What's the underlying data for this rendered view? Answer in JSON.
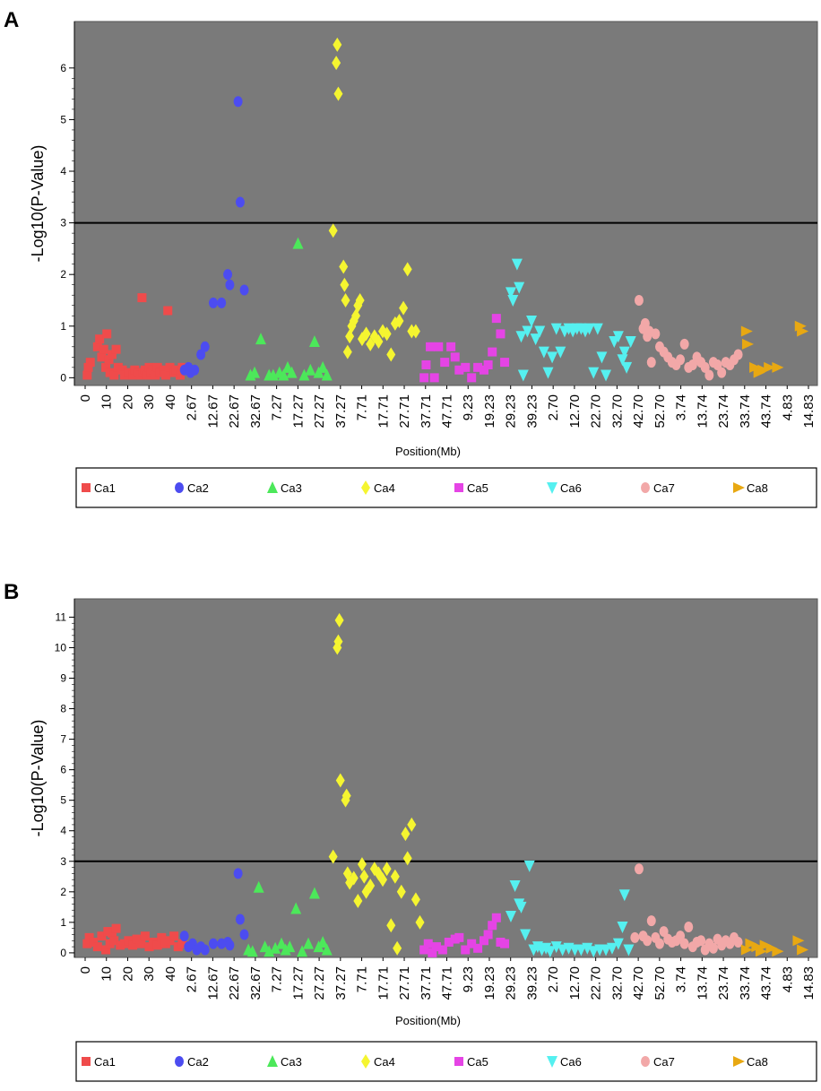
{
  "panels": [
    {
      "label": "A",
      "xlabel": "Position(Mb)",
      "ylabel": "-Log10(P-Value)",
      "ylim": [
        -0.15,
        6.9
      ],
      "yticks": [
        0,
        1,
        2,
        3,
        4,
        5,
        6
      ],
      "threshold": 3,
      "xticks": [
        "0",
        "10",
        "20",
        "30",
        "40",
        "2.67",
        "12.67",
        "22.67",
        "32.67",
        "7.27",
        "17.27",
        "27.27",
        "37.27",
        "7.71",
        "17.71",
        "27.71",
        "37.71",
        "47.71",
        "9.23",
        "19.23",
        "29.23",
        "39.23",
        "2.70",
        "12.70",
        "22.70",
        "32.70",
        "42.70",
        "52.70",
        "3.74",
        "13.74",
        "23.74",
        "33.74",
        "43.74",
        "4.83",
        "14.83"
      ],
      "legend": [
        "Ca1",
        "Ca2",
        "Ca3",
        "Ca4",
        "Ca5",
        "Ca6",
        "Ca7",
        "Ca8"
      ]
    },
    {
      "label": "B",
      "xlabel": "Position(Mb)",
      "ylabel": "-Log10(P-Value)",
      "ylim": [
        -0.15,
        11.6
      ],
      "yticks": [
        0,
        1,
        2,
        3,
        4,
        5,
        6,
        7,
        8,
        9,
        10,
        11
      ],
      "threshold": 3,
      "xticks": [
        "0",
        "10",
        "20",
        "30",
        "40",
        "2.67",
        "12.67",
        "22.67",
        "32.67",
        "7.27",
        "17.27",
        "27.27",
        "37.27",
        "7.71",
        "17.71",
        "27.71",
        "37.71",
        "47.71",
        "9.23",
        "19.23",
        "29.23",
        "39.23",
        "2.70",
        "12.70",
        "22.70",
        "32.70",
        "42.70",
        "52.70",
        "3.74",
        "13.74",
        "23.74",
        "33.74",
        "43.74",
        "4.83",
        "14.83"
      ],
      "legend": [
        "Ca1",
        "Ca2",
        "Ca3",
        "Ca4",
        "Ca5",
        "Ca6",
        "Ca7",
        "Ca8"
      ]
    }
  ],
  "colors": {
    "Ca1": "#ef4b4b",
    "Ca2": "#4c4cf0",
    "Ca3": "#4ce85a",
    "Ca4": "#f5f530",
    "Ca5": "#e544e5",
    "Ca6": "#55f0f0",
    "Ca7": "#f2a8a8",
    "Ca8": "#e8a812",
    "plot_bg": "#7a7a7a",
    "threshold": "#000000"
  },
  "chart_data": [
    {
      "type": "scatter",
      "title": "A",
      "xlabel": "Position(Mb)",
      "ylabel": "-Log10(P-Value)",
      "x_range": [
        0,
        35
      ],
      "ylim": [
        -0.15,
        6.9
      ],
      "threshold": 3,
      "series": [
        {
          "name": "Ca1",
          "shape": "square",
          "x": [
            0.1,
            0.15,
            0.25,
            0.6,
            0.7,
            0.8,
            0.9,
            1.0,
            1.05,
            1.15,
            1.2,
            1.3,
            1.4,
            1.5,
            1.6,
            1.8,
            1.9,
            2.1,
            2.3,
            2.4,
            2.6,
            2.7,
            2.75,
            2.8,
            2.9,
            3.0,
            3.1,
            3.2,
            3.3,
            3.4,
            3.5,
            3.6,
            3.8,
            3.9,
            4.0,
            4.1,
            4.3,
            4.4,
            4.6,
            4.7
          ],
          "y": [
            0.05,
            0.2,
            0.3,
            0.6,
            0.75,
            0.4,
            0.55,
            0.2,
            0.85,
            0.35,
            0.1,
            0.45,
            0.05,
            0.55,
            0.2,
            0.15,
            0.05,
            0.1,
            0.05,
            0.15,
            0.1,
            0.05,
            1.55,
            0.1,
            0.15,
            0.05,
            0.2,
            0.1,
            0.15,
            0.05,
            0.2,
            0.1,
            0.15,
            0.05,
            1.3,
            0.2,
            0.1,
            0.15,
            0.05,
            0.2
          ]
        },
        {
          "name": "Ca2",
          "shape": "circle",
          "x": [
            4.8,
            5.0,
            5.1,
            5.3,
            5.6,
            5.8,
            6.2,
            6.6,
            6.9,
            7.0,
            7.4,
            7.5,
            7.7
          ],
          "y": [
            0.15,
            0.2,
            0.1,
            0.15,
            0.45,
            0.6,
            1.45,
            1.45,
            2.0,
            1.8,
            5.35,
            3.4,
            1.7
          ]
        },
        {
          "name": "Ca3",
          "shape": "tri-up",
          "x": [
            8.0,
            8.2,
            8.5,
            8.9,
            9.1,
            9.4,
            9.6,
            9.8,
            10.0,
            10.3,
            10.6,
            10.9,
            11.1,
            11.3,
            11.5,
            11.7
          ],
          "y": [
            0.05,
            0.1,
            0.75,
            0.05,
            0.05,
            0.1,
            0.05,
            0.2,
            0.1,
            2.6,
            0.05,
            0.15,
            0.7,
            0.1,
            0.2,
            0.05
          ]
        },
        {
          "name": "Ca4",
          "shape": "diamond",
          "x": [
            12.0,
            12.15,
            12.2,
            12.25,
            12.5,
            12.55,
            12.6,
            12.7,
            12.8,
            12.9,
            13.0,
            13.1,
            13.2,
            13.3,
            13.4,
            13.6,
            13.8,
            14.0,
            14.2,
            14.4,
            14.6,
            14.8,
            15.0,
            15.2,
            15.4,
            15.6,
            15.8,
            16.0
          ],
          "y": [
            2.85,
            6.1,
            6.45,
            5.5,
            2.15,
            1.8,
            1.5,
            0.5,
            0.8,
            1.0,
            1.1,
            1.2,
            1.4,
            1.5,
            0.75,
            0.85,
            0.65,
            0.8,
            0.7,
            0.9,
            0.85,
            0.45,
            1.05,
            1.1,
            1.35,
            2.1,
            0.9,
            0.9
          ]
        },
        {
          "name": "Ca5",
          "shape": "square",
          "x": [
            16.4,
            16.5,
            16.7,
            16.9,
            17.1,
            17.4,
            17.7,
            17.9,
            18.1,
            18.4,
            18.7,
            19.0,
            19.3,
            19.5,
            19.7,
            19.9,
            20.1,
            20.3
          ],
          "y": [
            0.0,
            0.25,
            0.6,
            0.0,
            0.6,
            0.3,
            0.6,
            0.4,
            0.15,
            0.2,
            0.0,
            0.2,
            0.15,
            0.25,
            0.5,
            1.15,
            0.85,
            0.3
          ]
        },
        {
          "name": "Ca6",
          "shape": "tri-down",
          "x": [
            20.6,
            20.7,
            20.9,
            21.0,
            21.1,
            21.2,
            21.4,
            21.6,
            21.8,
            22.0,
            22.2,
            22.4,
            22.6,
            22.8,
            23.0,
            23.2,
            23.4,
            23.6,
            23.8,
            24.0,
            24.2,
            24.4,
            24.6,
            24.8,
            25.0,
            25.2,
            25.6,
            25.8,
            26.0,
            26.1,
            26.2,
            26.4
          ],
          "y": [
            1.65,
            1.5,
            2.2,
            1.75,
            0.8,
            0.05,
            0.9,
            1.1,
            0.75,
            0.9,
            0.5,
            0.1,
            0.4,
            0.95,
            0.5,
            0.9,
            0.95,
            0.9,
            0.95,
            0.95,
            0.9,
            0.95,
            0.1,
            0.95,
            0.4,
            0.05,
            0.7,
            0.8,
            0.35,
            0.5,
            0.2,
            0.7
          ]
        },
        {
          "name": "Ca7",
          "shape": "circle",
          "x": [
            26.8,
            27.0,
            27.1,
            27.2,
            27.3,
            27.4,
            27.6,
            27.8,
            28.0,
            28.2,
            28.4,
            28.6,
            28.8,
            29.0,
            29.2,
            29.4,
            29.6,
            29.8,
            30.0,
            30.2,
            30.4,
            30.6,
            30.8,
            31.0,
            31.2,
            31.4,
            31.6
          ],
          "y": [
            1.5,
            0.95,
            1.05,
            0.8,
            0.9,
            0.3,
            0.85,
            0.6,
            0.5,
            0.4,
            0.3,
            0.25,
            0.35,
            0.65,
            0.2,
            0.25,
            0.4,
            0.3,
            0.2,
            0.05,
            0.3,
            0.25,
            0.1,
            0.3,
            0.25,
            0.35,
            0.45
          ]
        },
        {
          "name": "Ca8",
          "shape": "tri-right",
          "x": [
            32.0,
            32.05,
            32.4,
            32.6,
            32.8,
            33.1,
            33.5,
            34.6,
            34.7
          ],
          "y": [
            0.9,
            0.65,
            0.2,
            0.1,
            0.15,
            0.2,
            0.2,
            1.0,
            0.9
          ]
        }
      ]
    },
    {
      "type": "scatter",
      "title": "B",
      "xlabel": "Position(Mb)",
      "ylabel": "-Log10(P-Value)",
      "x_range": [
        0,
        35
      ],
      "ylim": [
        -0.15,
        11.6
      ],
      "threshold": 3,
      "series": [
        {
          "name": "Ca1",
          "shape": "square",
          "x": [
            0.1,
            0.2,
            0.4,
            0.6,
            0.8,
            1.0,
            1.1,
            1.2,
            1.3,
            1.4,
            1.5,
            1.7,
            1.9,
            2.1,
            2.3,
            2.5,
            2.7,
            2.9,
            3.1,
            3.3,
            3.5,
            3.7,
            3.9,
            4.1,
            4.3,
            4.5,
            4.7
          ],
          "y": [
            0.3,
            0.5,
            0.35,
            0.2,
            0.55,
            0.1,
            0.7,
            0.3,
            0.65,
            0.4,
            0.8,
            0.25,
            0.3,
            0.4,
            0.25,
            0.45,
            0.3,
            0.55,
            0.2,
            0.35,
            0.25,
            0.5,
            0.3,
            0.4,
            0.55,
            0.2,
            0.3
          ]
        },
        {
          "name": "Ca2",
          "shape": "circle",
          "x": [
            4.8,
            5.0,
            5.2,
            5.4,
            5.6,
            5.8,
            6.2,
            6.6,
            6.9,
            7.0,
            7.4,
            7.5,
            7.7
          ],
          "y": [
            0.55,
            0.2,
            0.3,
            0.1,
            0.2,
            0.1,
            0.3,
            0.3,
            0.35,
            0.25,
            2.6,
            1.1,
            0.6
          ]
        },
        {
          "name": "Ca3",
          "shape": "tri-up",
          "x": [
            7.9,
            8.1,
            8.4,
            8.7,
            8.9,
            9.2,
            9.5,
            9.7,
            9.9,
            10.2,
            10.5,
            10.8,
            11.1,
            11.3,
            11.5,
            11.7
          ],
          "y": [
            0.1,
            0.05,
            2.15,
            0.2,
            0.05,
            0.15,
            0.3,
            0.1,
            0.2,
            1.45,
            0.05,
            0.3,
            1.95,
            0.2,
            0.35,
            0.1
          ]
        },
        {
          "name": "Ca4",
          "shape": "diamond",
          "x": [
            12.0,
            12.2,
            12.25,
            12.3,
            12.35,
            12.6,
            12.65,
            12.7,
            12.8,
            13.0,
            13.2,
            13.4,
            13.5,
            13.6,
            13.8,
            14.0,
            14.2,
            14.4,
            14.6,
            14.8,
            15.0,
            15.1,
            15.3,
            15.5,
            15.6,
            15.8,
            16.0,
            16.2
          ],
          "y": [
            3.15,
            10.0,
            10.2,
            10.9,
            5.65,
            5.0,
            5.15,
            2.6,
            2.3,
            2.45,
            1.7,
            2.9,
            2.5,
            2.0,
            2.2,
            2.75,
            2.6,
            2.4,
            2.75,
            0.9,
            2.5,
            0.15,
            2.0,
            3.9,
            3.1,
            4.2,
            1.75,
            1.0
          ]
        },
        {
          "name": "Ca5",
          "shape": "square",
          "x": [
            16.4,
            16.6,
            16.8,
            17.0,
            17.3,
            17.6,
            17.9,
            18.1,
            18.4,
            18.7,
            19.0,
            19.3,
            19.5,
            19.7,
            19.9,
            20.1,
            20.3
          ],
          "y": [
            0.1,
            0.3,
            0.0,
            0.2,
            0.1,
            0.35,
            0.45,
            0.5,
            0.1,
            0.3,
            0.15,
            0.4,
            0.6,
            0.9,
            1.15,
            0.35,
            0.3
          ]
        },
        {
          "name": "Ca6",
          "shape": "tri-down",
          "x": [
            20.6,
            20.8,
            21.0,
            21.1,
            21.3,
            21.5,
            21.7,
            21.9,
            22.1,
            22.3,
            22.5,
            22.8,
            23.1,
            23.4,
            23.7,
            24.0,
            24.3,
            24.6,
            24.9,
            25.2,
            25.5,
            25.8,
            26.0,
            26.1,
            26.3
          ],
          "y": [
            1.2,
            2.2,
            1.6,
            1.5,
            0.6,
            2.85,
            0.1,
            0.2,
            0.1,
            0.15,
            0.05,
            0.2,
            0.1,
            0.15,
            0.1,
            0.1,
            0.15,
            0.05,
            0.1,
            0.1,
            0.15,
            0.3,
            0.85,
            1.9,
            0.1
          ]
        },
        {
          "name": "Ca7",
          "shape": "circle",
          "x": [
            26.6,
            26.8,
            27.0,
            27.2,
            27.4,
            27.6,
            27.8,
            28.0,
            28.2,
            28.4,
            28.6,
            28.8,
            29.0,
            29.2,
            29.4,
            29.6,
            29.8,
            30.0,
            30.2,
            30.4,
            30.6,
            30.8,
            31.0,
            31.2,
            31.4,
            31.6
          ],
          "y": [
            0.5,
            2.75,
            0.55,
            0.4,
            1.05,
            0.5,
            0.3,
            0.7,
            0.45,
            0.35,
            0.4,
            0.55,
            0.3,
            0.85,
            0.2,
            0.35,
            0.4,
            0.1,
            0.3,
            0.15,
            0.45,
            0.25,
            0.4,
            0.3,
            0.5,
            0.35
          ]
        },
        {
          "name": "Ca8",
          "shape": "tri-right",
          "x": [
            32.0,
            32.2,
            32.5,
            32.7,
            32.9,
            33.2,
            33.5,
            34.5,
            34.7
          ],
          "y": [
            0.1,
            0.3,
            0.2,
            0.05,
            0.25,
            0.15,
            0.05,
            0.4,
            0.1
          ]
        }
      ]
    }
  ]
}
